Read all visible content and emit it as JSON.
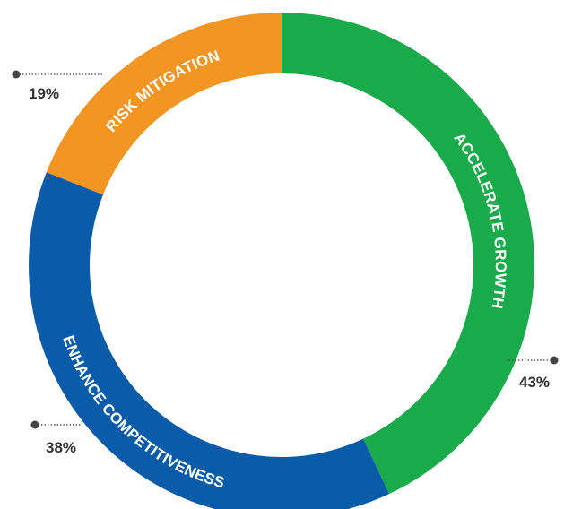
{
  "chart_data": {
    "type": "pie",
    "style": "donut",
    "slices": [
      {
        "label": "ACCELERATE GROWTH",
        "value": 43,
        "display": "43%",
        "color": "#1aaa4b"
      },
      {
        "label": "ENHANCE COMPETITIVENESS",
        "value": 38,
        "display": "38%",
        "color": "#0b5ca8"
      },
      {
        "label": "RISK MITIGATION",
        "value": 19,
        "display": "19%",
        "color": "#f39522"
      }
    ],
    "leader_color": "#444444"
  }
}
